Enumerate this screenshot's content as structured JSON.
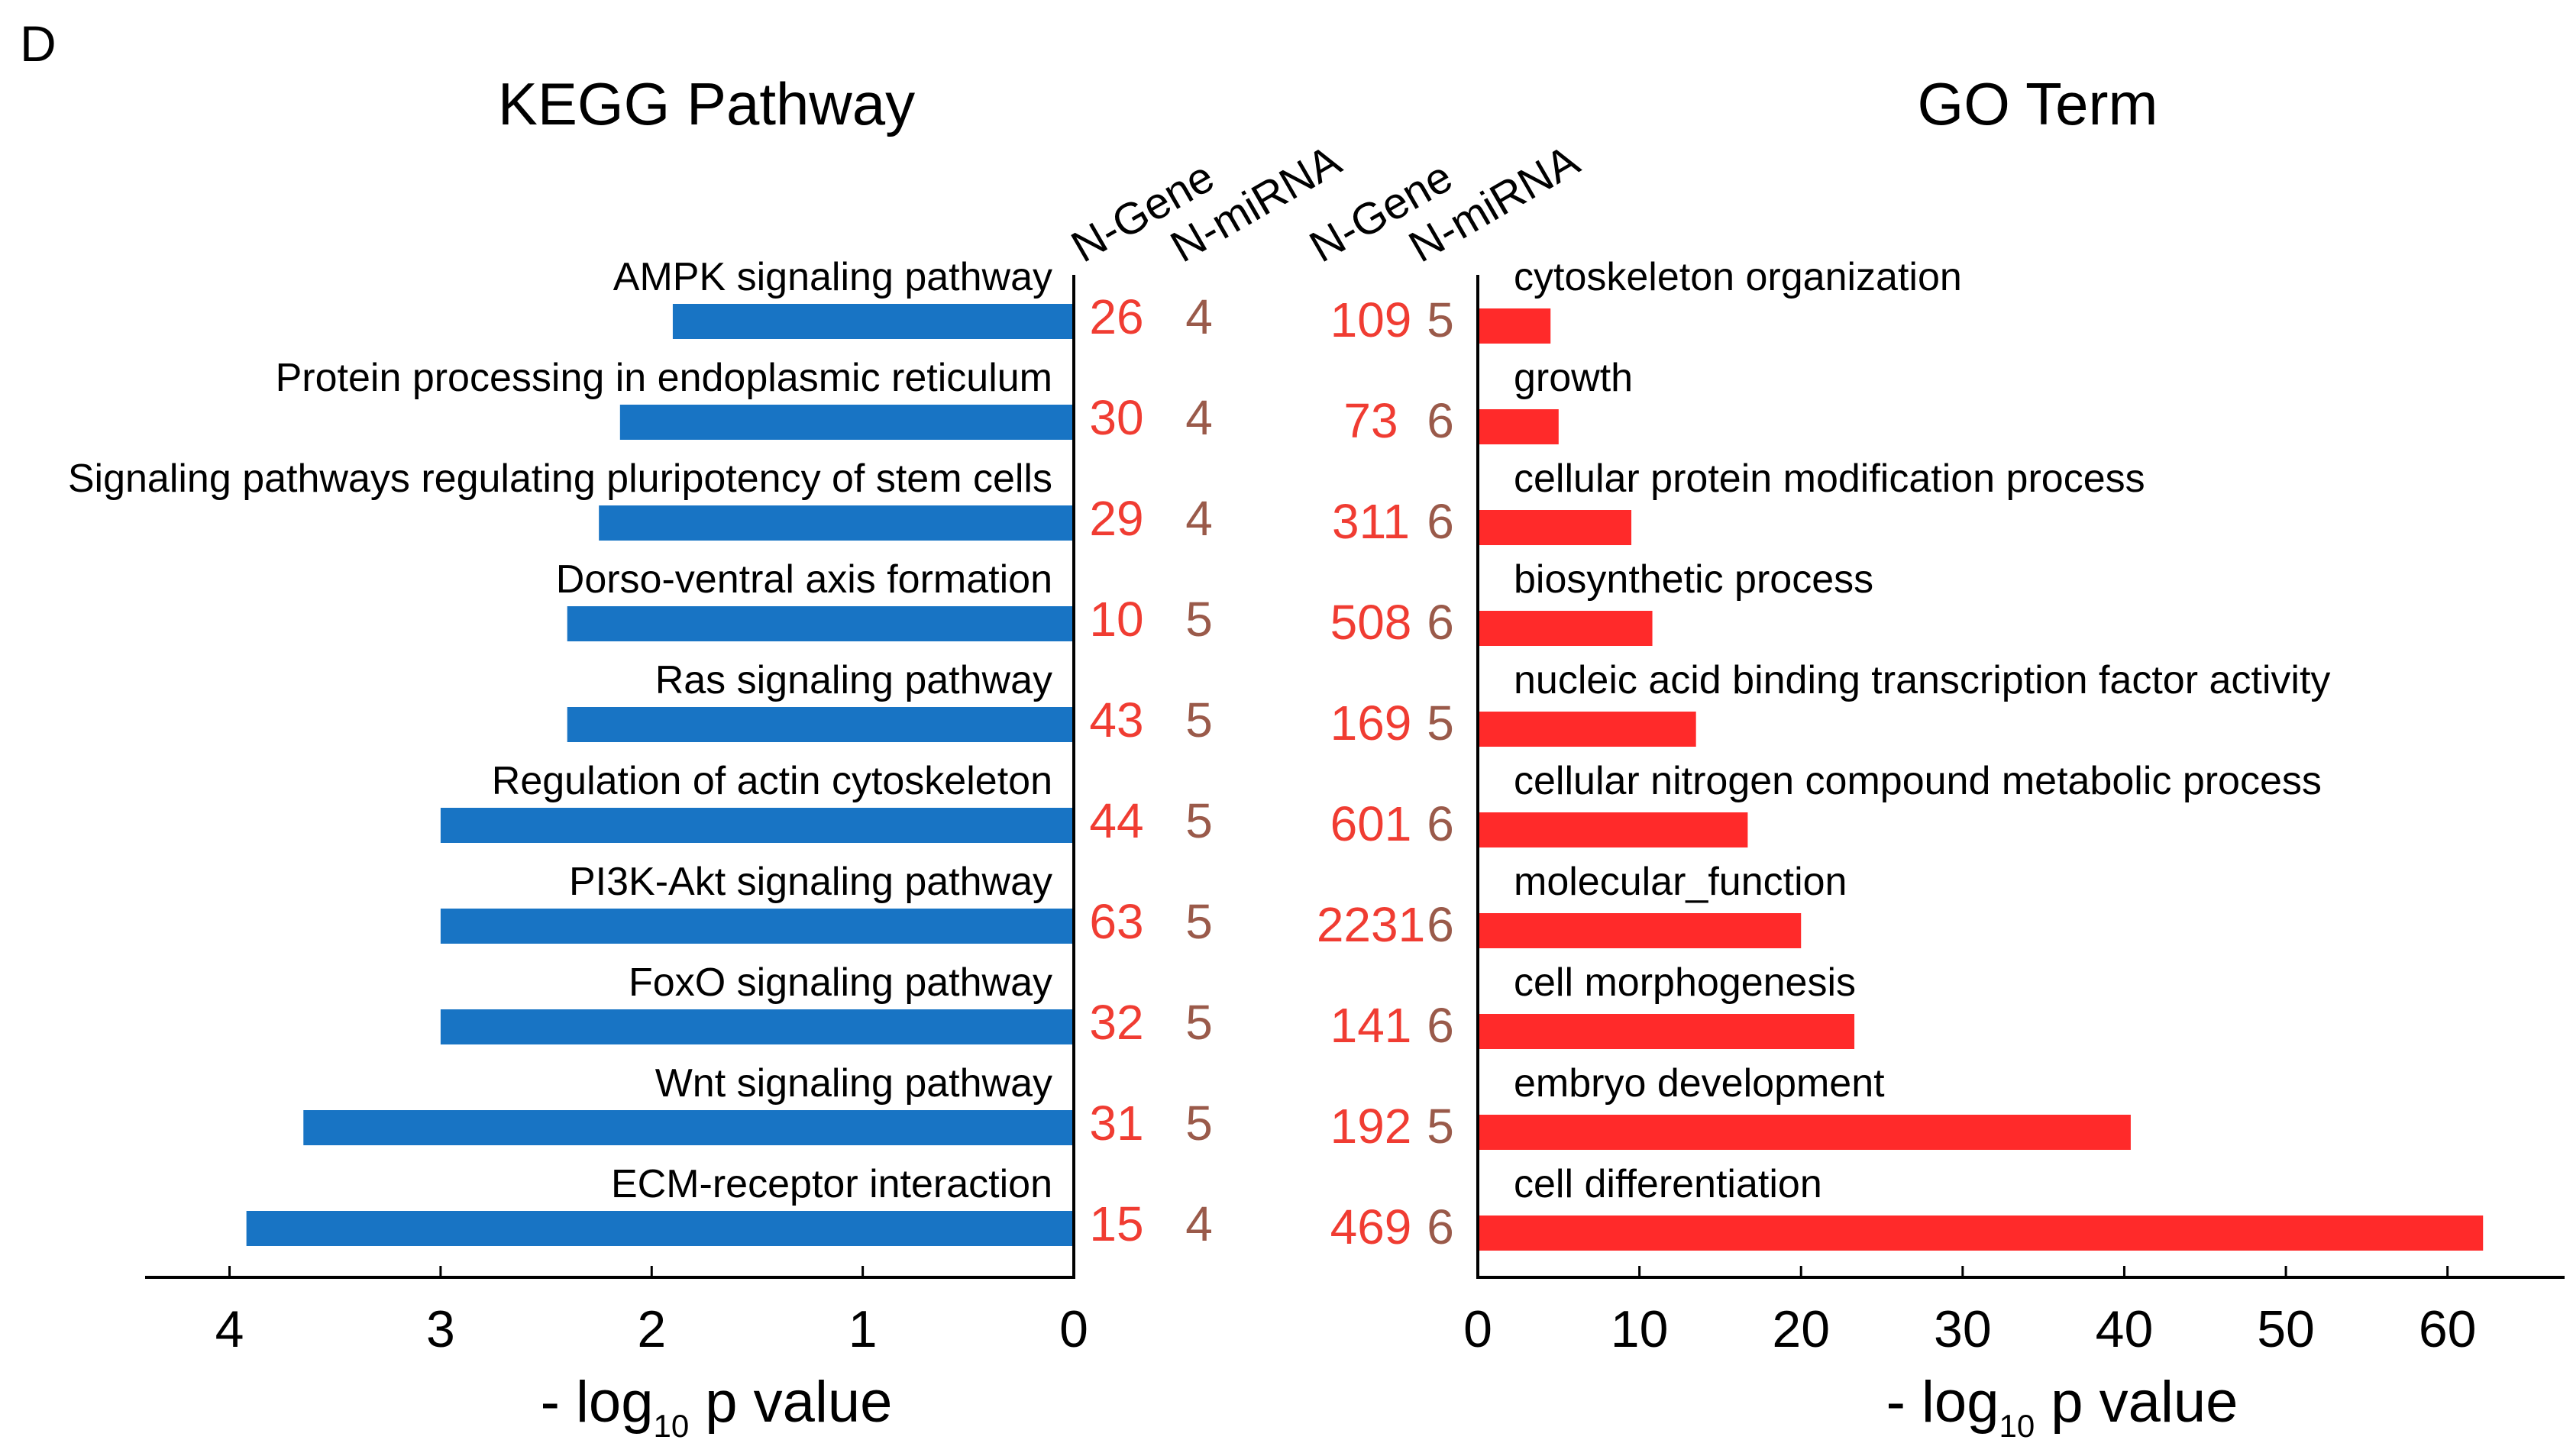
{
  "panel_label": "D",
  "chart_data": [
    {
      "type": "bar",
      "orientation": "horizontal-reversed",
      "title": "KEGG Pathway",
      "xlabel": "- log10 p value",
      "xlabel_parts": {
        "prefix": "- log",
        "sub": "10",
        "suffix": " p value"
      },
      "xlim": [
        0,
        4.4
      ],
      "ticks": [
        4,
        3,
        2,
        1,
        0
      ],
      "color": "#1874c4",
      "column_headers": [
        "N-Gene",
        "N-miRNA"
      ],
      "categories": [
        "AMPK signaling pathway",
        "Protein processing in endoplasmic reticulum",
        "Signaling pathways regulating pluripotency of stem cells",
        "Dorso-ventral axis formation",
        "Ras signaling pathway",
        "Regulation of actin cytoskeleton",
        "PI3K-Akt signaling pathway",
        "FoxO signaling pathway",
        "Wnt signaling pathway",
        "ECM-receptor interaction"
      ],
      "values": [
        1.9,
        2.15,
        2.25,
        2.4,
        2.4,
        3.0,
        3.0,
        3.0,
        3.65,
        3.92
      ],
      "n_gene": [
        "26",
        "30",
        "29",
        "10",
        "43",
        "44",
        "63",
        "32",
        "31",
        "15"
      ],
      "n_mirna": [
        "4",
        "4",
        "4",
        "5",
        "5",
        "5",
        "5",
        "5",
        "5",
        "4"
      ]
    },
    {
      "type": "bar",
      "orientation": "horizontal",
      "title": "GO Term",
      "xlabel": "- log10 p value",
      "xlabel_parts": {
        "prefix": "- log",
        "sub": "10",
        "suffix": " p value"
      },
      "xlim": [
        0,
        67
      ],
      "ticks": [
        0,
        10,
        20,
        30,
        40,
        50,
        60
      ],
      "color": "#ff2a2a",
      "column_headers": [
        "N-Gene",
        "N-miRNA"
      ],
      "categories": [
        "cytoskeleton organization",
        "growth",
        "cellular protein modification process",
        "biosynthetic process",
        "nucleic acid binding transcription factor activity",
        "cellular nitrogen compound metabolic process",
        "molecular_function",
        "cell morphogenesis",
        "embryo development",
        "cell differentiation"
      ],
      "values": [
        4.5,
        5.0,
        9.5,
        10.8,
        13.5,
        16.7,
        20.0,
        23.3,
        40.4,
        62.2
      ],
      "n_gene": [
        "109",
        "73",
        "311",
        "508",
        "169",
        "601",
        "2231",
        "141",
        "192",
        "469"
      ],
      "n_mirna": [
        "5",
        "6",
        "6",
        "6",
        "5",
        "6",
        "6",
        "6",
        "5",
        "6"
      ]
    }
  ]
}
